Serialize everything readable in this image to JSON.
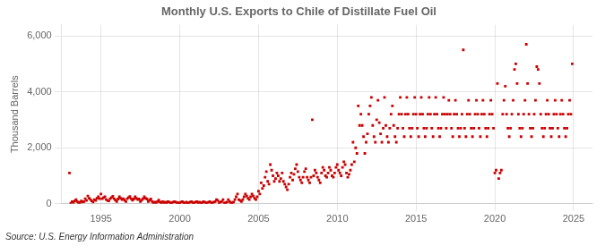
{
  "chart_data": {
    "type": "scatter",
    "title": "Monthly U.S. Exports to Chile of Distillate Fuel Oil",
    "ylabel": "Thousand Barrels",
    "source": "Source: U.S. Energy Information Administration",
    "color": "#cc0000",
    "marker": "square",
    "grid": true,
    "xlim": [
      1992.5,
      2026.2
    ],
    "xticks": [
      1995,
      2000,
      2005,
      2010,
      2015,
      2020,
      2025
    ],
    "ylim": [
      0,
      6400
    ],
    "yticks": [
      0,
      {
        "value": 2000,
        "label": "2,000"
      },
      {
        "value": 4000,
        "label": "4,000"
      },
      {
        "value": 6000,
        "label": "6,000"
      }
    ],
    "x": [
      1993.0,
      1993.083,
      1993.167,
      1993.25,
      1993.333,
      1993.417,
      1993.5,
      1993.583,
      1993.667,
      1993.75,
      1993.833,
      1993.917,
      1994.0,
      1994.083,
      1994.167,
      1994.25,
      1994.333,
      1994.417,
      1994.5,
      1994.583,
      1994.667,
      1994.75,
      1994.833,
      1994.917,
      1995.0,
      1995.083,
      1995.167,
      1995.25,
      1995.333,
      1995.417,
      1995.5,
      1995.583,
      1995.667,
      1995.75,
      1995.833,
      1995.917,
      1996.0,
      1996.083,
      1996.167,
      1996.25,
      1996.333,
      1996.417,
      1996.5,
      1996.583,
      1996.667,
      1996.75,
      1996.833,
      1996.917,
      1997.0,
      1997.083,
      1997.167,
      1997.25,
      1997.333,
      1997.417,
      1997.5,
      1997.583,
      1997.667,
      1997.75,
      1997.833,
      1997.917,
      1998.0,
      1998.083,
      1998.167,
      1998.25,
      1998.333,
      1998.417,
      1998.5,
      1998.583,
      1998.667,
      1998.75,
      1998.833,
      1998.917,
      1999.0,
      1999.083,
      1999.167,
      1999.25,
      1999.333,
      1999.417,
      1999.5,
      1999.583,
      1999.667,
      1999.75,
      1999.833,
      1999.917,
      2000.0,
      2000.083,
      2000.167,
      2000.25,
      2000.333,
      2000.417,
      2000.5,
      2000.583,
      2000.667,
      2000.75,
      2000.833,
      2000.917,
      2001.0,
      2001.083,
      2001.167,
      2001.25,
      2001.333,
      2001.417,
      2001.5,
      2001.583,
      2001.667,
      2001.75,
      2001.833,
      2001.917,
      2002.0,
      2002.083,
      2002.167,
      2002.25,
      2002.333,
      2002.417,
      2002.5,
      2002.583,
      2002.667,
      2002.75,
      2002.833,
      2002.917,
      2003.0,
      2003.083,
      2003.167,
      2003.25,
      2003.333,
      2003.417,
      2003.5,
      2003.583,
      2003.667,
      2003.75,
      2003.833,
      2003.917,
      2004.0,
      2004.083,
      2004.167,
      2004.25,
      2004.333,
      2004.417,
      2004.5,
      2004.583,
      2004.667,
      2004.75,
      2004.833,
      2004.917,
      2005.0,
      2005.083,
      2005.167,
      2005.25,
      2005.333,
      2005.417,
      2005.5,
      2005.583,
      2005.667,
      2005.75,
      2005.833,
      2005.917,
      2006.0,
      2006.083,
      2006.167,
      2006.25,
      2006.333,
      2006.417,
      2006.5,
      2006.583,
      2006.667,
      2006.75,
      2006.833,
      2006.917,
      2007.0,
      2007.083,
      2007.167,
      2007.25,
      2007.333,
      2007.417,
      2007.5,
      2007.583,
      2007.667,
      2007.75,
      2007.833,
      2007.917,
      2008.0,
      2008.083,
      2008.167,
      2008.25,
      2008.333,
      2008.417,
      2008.5,
      2008.583,
      2008.667,
      2008.75,
      2008.833,
      2008.917,
      2009.0,
      2009.083,
      2009.167,
      2009.25,
      2009.333,
      2009.417,
      2009.5,
      2009.583,
      2009.667,
      2009.75,
      2009.833,
      2009.917,
      2010.0,
      2010.083,
      2010.167,
      2010.25,
      2010.333,
      2010.417,
      2010.5,
      2010.583,
      2010.667,
      2010.75,
      2010.833,
      2010.917,
      2011.0,
      2011.083,
      2011.167,
      2011.25,
      2011.333,
      2011.417,
      2011.5,
      2011.583,
      2011.667,
      2011.75,
      2011.833,
      2011.917,
      2012.0,
      2012.083,
      2012.167,
      2012.25,
      2012.333,
      2012.417,
      2012.5,
      2012.583,
      2012.667,
      2012.75,
      2012.833,
      2012.917,
      2013.0,
      2013.083,
      2013.167,
      2013.25,
      2013.333,
      2013.417,
      2013.5,
      2013.583,
      2013.667,
      2013.75,
      2013.833,
      2013.917,
      2014.0,
      2014.083,
      2014.167,
      2014.25,
      2014.333,
      2014.417,
      2014.5,
      2014.583,
      2014.667,
      2014.75,
      2014.833,
      2014.917,
      2015.0,
      2015.083,
      2015.167,
      2015.25,
      2015.333,
      2015.417,
      2015.5,
      2015.583,
      2015.667,
      2015.75,
      2015.833,
      2015.917,
      2016.0,
      2016.083,
      2016.167,
      2016.25,
      2016.333,
      2016.417,
      2016.5,
      2016.583,
      2016.667,
      2016.75,
      2016.833,
      2016.917,
      2017.0,
      2017.083,
      2017.167,
      2017.25,
      2017.333,
      2017.417,
      2017.5,
      2017.583,
      2017.667,
      2017.75,
      2017.833,
      2017.917,
      2018.0,
      2018.083,
      2018.167,
      2018.25,
      2018.333,
      2018.417,
      2018.5,
      2018.583,
      2018.667,
      2018.75,
      2018.833,
      2018.917,
      2019.0,
      2019.083,
      2019.167,
      2019.25,
      2019.333,
      2019.417,
      2019.5,
      2019.583,
      2019.667,
      2019.75,
      2019.833,
      2019.917,
      2020.0,
      2020.083,
      2020.167,
      2020.25,
      2020.333,
      2020.417,
      2020.5,
      2020.583,
      2020.667,
      2020.75,
      2020.833,
      2020.917,
      2021.0,
      2021.083,
      2021.167,
      2021.25,
      2021.333,
      2021.417,
      2021.5,
      2021.583,
      2021.667,
      2021.75,
      2021.833,
      2021.917,
      2022.0,
      2022.083,
      2022.167,
      2022.25,
      2022.333,
      2022.417,
      2022.5,
      2022.583,
      2022.667,
      2022.75,
      2022.833,
      2022.917,
      2023.0,
      2023.083,
      2023.167,
      2023.25,
      2023.333,
      2023.417,
      2023.5,
      2023.583,
      2023.667,
      2023.75,
      2023.833,
      2023.917,
      2024.0,
      2024.083,
      2024.167,
      2024.25,
      2024.333,
      2024.417,
      2024.5,
      2024.583,
      2024.667,
      2024.75,
      2024.833,
      2024.917
    ],
    "values": [
      1100,
      20,
      80,
      50,
      100,
      150,
      80,
      30,
      50,
      100,
      60,
      80,
      180,
      120,
      280,
      200,
      150,
      100,
      60,
      150,
      120,
      200,
      250,
      180,
      350,
      180,
      220,
      250,
      150,
      120,
      100,
      180,
      220,
      270,
      180,
      130,
      80,
      170,
      250,
      200,
      150,
      180,
      130,
      80,
      180,
      220,
      260,
      180,
      130,
      170,
      250,
      200,
      150,
      170,
      80,
      130,
      180,
      250,
      200,
      170,
      80,
      130,
      170,
      80,
      30,
      60,
      40,
      80,
      130,
      60,
      30,
      80,
      30,
      60,
      40,
      80,
      60,
      30,
      40,
      60,
      80,
      60,
      30,
      40,
      30,
      60,
      80,
      40,
      30,
      60,
      40,
      30,
      60,
      80,
      40,
      30,
      60,
      80,
      40,
      60,
      30,
      40,
      80,
      60,
      40,
      30,
      60,
      80,
      40,
      30,
      60,
      80,
      150,
      120,
      40,
      60,
      80,
      150,
      30,
      40,
      60,
      150,
      80,
      40,
      30,
      60,
      150,
      250,
      350,
      150,
      120,
      80,
      150,
      250,
      350,
      280,
      200,
      150,
      250,
      350,
      280,
      200,
      150,
      250,
      450,
      350,
      750,
      550,
      650,
      950,
      1150,
      800,
      700,
      1400,
      1200,
      1000,
      800,
      900,
      1100,
      1000,
      800,
      900,
      1100,
      800,
      700,
      600,
      500,
      700,
      950,
      1100,
      850,
      1050,
      1250,
      1400,
      1150,
      950,
      850,
      750,
      950,
      1150,
      1250,
      950,
      850,
      750,
      950,
      3000,
      1000,
      1200,
      1100,
      950,
      850,
      750,
      1100,
      1300,
      1200,
      1000,
      950,
      1100,
      1300,
      1200,
      1000,
      950,
      1100,
      1300,
      1400,
      1200,
      1100,
      1000,
      1300,
      1500,
      1400,
      1100,
      950,
      1050,
      1200,
      1400,
      2200,
      1500,
      2000,
      1800,
      3500,
      2800,
      3200,
      2800,
      2400,
      1800,
      2200,
      2500,
      3200,
      3500,
      3800,
      2800,
      2400,
      2200,
      3000,
      3700,
      2900,
      2500,
      2200,
      2700,
      3800,
      2800,
      2400,
      2200,
      2700,
      3200,
      3500,
      2800,
      2400,
      2200,
      2700,
      3200,
      3800,
      3200,
      2700,
      2400,
      3200,
      3800,
      3200,
      2700,
      2400,
      2700,
      3200,
      3800,
      3200,
      2700,
      2400,
      3200,
      3800,
      3200,
      2700,
      2400,
      2700,
      3200,
      3800,
      3200,
      2700,
      2400,
      3200,
      3800,
      3200,
      2700,
      2400,
      2700,
      3200,
      3800,
      3200,
      2700,
      3200,
      3700,
      3200,
      2700,
      2400,
      3200,
      3700,
      3200,
      2700,
      2400,
      2700,
      3200,
      5500,
      2700,
      2400,
      3200,
      3700,
      3200,
      2700,
      2400,
      2700,
      3200,
      3700,
      3200,
      2700,
      2400,
      3200,
      3700,
      3200,
      2700,
      2400,
      2700,
      3200,
      3700,
      3200,
      2700,
      1100,
      1200,
      4300,
      900,
      1100,
      1200,
      3200,
      3700,
      4200,
      3200,
      2700,
      2400,
      2700,
      3200,
      3700,
      4800,
      5000,
      4300,
      3200,
      2700,
      2400,
      2700,
      3200,
      3700,
      5700,
      4300,
      3200,
      2700,
      2400,
      2700,
      3200,
      3700,
      4900,
      4800,
      4300,
      3200,
      2700,
      2400,
      2700,
      3200,
      3700,
      3200,
      2700,
      2400,
      2700,
      3200,
      3700,
      3200,
      2700,
      2400,
      3200,
      3700,
      3200,
      2700,
      2400,
      2700,
      3200,
      3700,
      3200,
      5000
    ]
  }
}
